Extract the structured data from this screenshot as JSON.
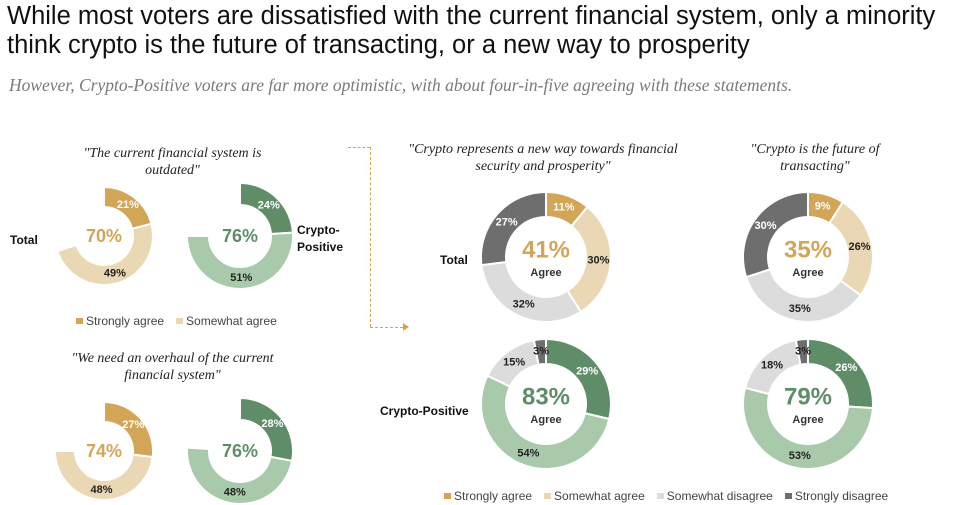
{
  "title": "While most voters are dissatisfied with the current financial system, only a minority think crypto is the future of transacting, or a new way to prosperity",
  "subtitle": "However, Crypto-Positive voters are far more optimistic, with about four-in-five agreeing with these statements.",
  "colors": {
    "strongly_agree_gold": "#d2a557",
    "somewhat_agree_tan": "#ead7b3",
    "strongly_agree_green": "#5e8d68",
    "somewhat_agree_green": "#a9c9ab",
    "somewhat_disagree": "#dcdcdc",
    "strongly_disagree": "#6e6e6e",
    "center_gold": "#d2a557",
    "center_green": "#5e8d68"
  },
  "questions": {
    "q1": "\"The current financial system is outdated\"",
    "q2": "\"We need an overhaul of the current financial system\"",
    "q3": "\"Crypto represents a new way towards financial security and prosperity\"",
    "q4": "\"Crypto is the future of transacting\""
  },
  "labels": {
    "total_left": "Total",
    "crypto_positive_left": "Crypto-Positive",
    "total_right": "Total",
    "crypto_positive_right": "Crypto-Positive",
    "agree": "Agree"
  },
  "legend_left": [
    {
      "label": "Strongly agree",
      "color": "#d2a557"
    },
    {
      "label": "Somewhat agree",
      "color": "#ead7b3"
    }
  ],
  "legend_right": [
    {
      "label": "Strongly agree",
      "color": "#d2a557"
    },
    {
      "label": "Somewhat agree",
      "color": "#ead7b3"
    },
    {
      "label": "Somewhat disagree",
      "color": "#dcdcdc"
    },
    {
      "label": "Strongly disagree",
      "color": "#6e6e6e"
    }
  ],
  "chart_data": [
    {
      "type": "pie",
      "id": "q1-total",
      "question": "\"The current financial system is outdated\"",
      "group": "Total",
      "center": "70%",
      "series": [
        {
          "name": "Strongly agree",
          "value": 21
        },
        {
          "name": "Somewhat agree",
          "value": 49
        }
      ]
    },
    {
      "type": "pie",
      "id": "q1-crypto",
      "question": "\"The current financial system is outdated\"",
      "group": "Crypto-Positive",
      "center": "76%",
      "series": [
        {
          "name": "Strongly agree",
          "value": 24
        },
        {
          "name": "Somewhat agree",
          "value": 51
        }
      ]
    },
    {
      "type": "pie",
      "id": "q2-total",
      "question": "\"We need an overhaul of the current financial system\"",
      "group": "Total",
      "center": "74%",
      "series": [
        {
          "name": "Strongly agree",
          "value": 27
        },
        {
          "name": "Somewhat agree",
          "value": 48
        }
      ]
    },
    {
      "type": "pie",
      "id": "q2-crypto",
      "question": "\"We need an overhaul of the current financial system\"",
      "group": "Crypto-Positive",
      "center": "76%",
      "series": [
        {
          "name": "Strongly agree",
          "value": 28
        },
        {
          "name": "Somewhat agree",
          "value": 48
        }
      ]
    },
    {
      "type": "pie",
      "id": "q3-total",
      "question": "\"Crypto represents a new way towards financial security and prosperity\"",
      "group": "Total",
      "center": "41%",
      "center_sub": "Agree",
      "series": [
        {
          "name": "Strongly agree",
          "value": 11
        },
        {
          "name": "Somewhat agree",
          "value": 30
        },
        {
          "name": "Somewhat disagree",
          "value": 32
        },
        {
          "name": "Strongly disagree",
          "value": 27
        }
      ]
    },
    {
      "type": "pie",
      "id": "q3-crypto",
      "question": "\"Crypto represents a new way towards financial security and prosperity\"",
      "group": "Crypto-Positive",
      "center": "83%",
      "center_sub": "Agree",
      "series": [
        {
          "name": "Strongly agree",
          "value": 29
        },
        {
          "name": "Somewhat agree",
          "value": 54
        },
        {
          "name": "Somewhat disagree",
          "value": 15
        },
        {
          "name": "Strongly disagree",
          "value": 3
        }
      ]
    },
    {
      "type": "pie",
      "id": "q4-total",
      "question": "\"Crypto is the future of transacting\"",
      "group": "Total",
      "center": "35%",
      "center_sub": "Agree",
      "series": [
        {
          "name": "Strongly agree",
          "value": 9
        },
        {
          "name": "Somewhat agree",
          "value": 26
        },
        {
          "name": "Somewhat disagree",
          "value": 35
        },
        {
          "name": "Strongly disagree",
          "value": 30
        }
      ]
    },
    {
      "type": "pie",
      "id": "q4-crypto",
      "question": "\"Crypto is the future of transacting\"",
      "group": "Crypto-Positive",
      "center": "79%",
      "center_sub": "Agree",
      "series": [
        {
          "name": "Strongly agree",
          "value": 26
        },
        {
          "name": "Somewhat agree",
          "value": 53
        },
        {
          "name": "Somewhat disagree",
          "value": 18
        },
        {
          "name": "Strongly disagree",
          "value": 3
        }
      ]
    }
  ]
}
